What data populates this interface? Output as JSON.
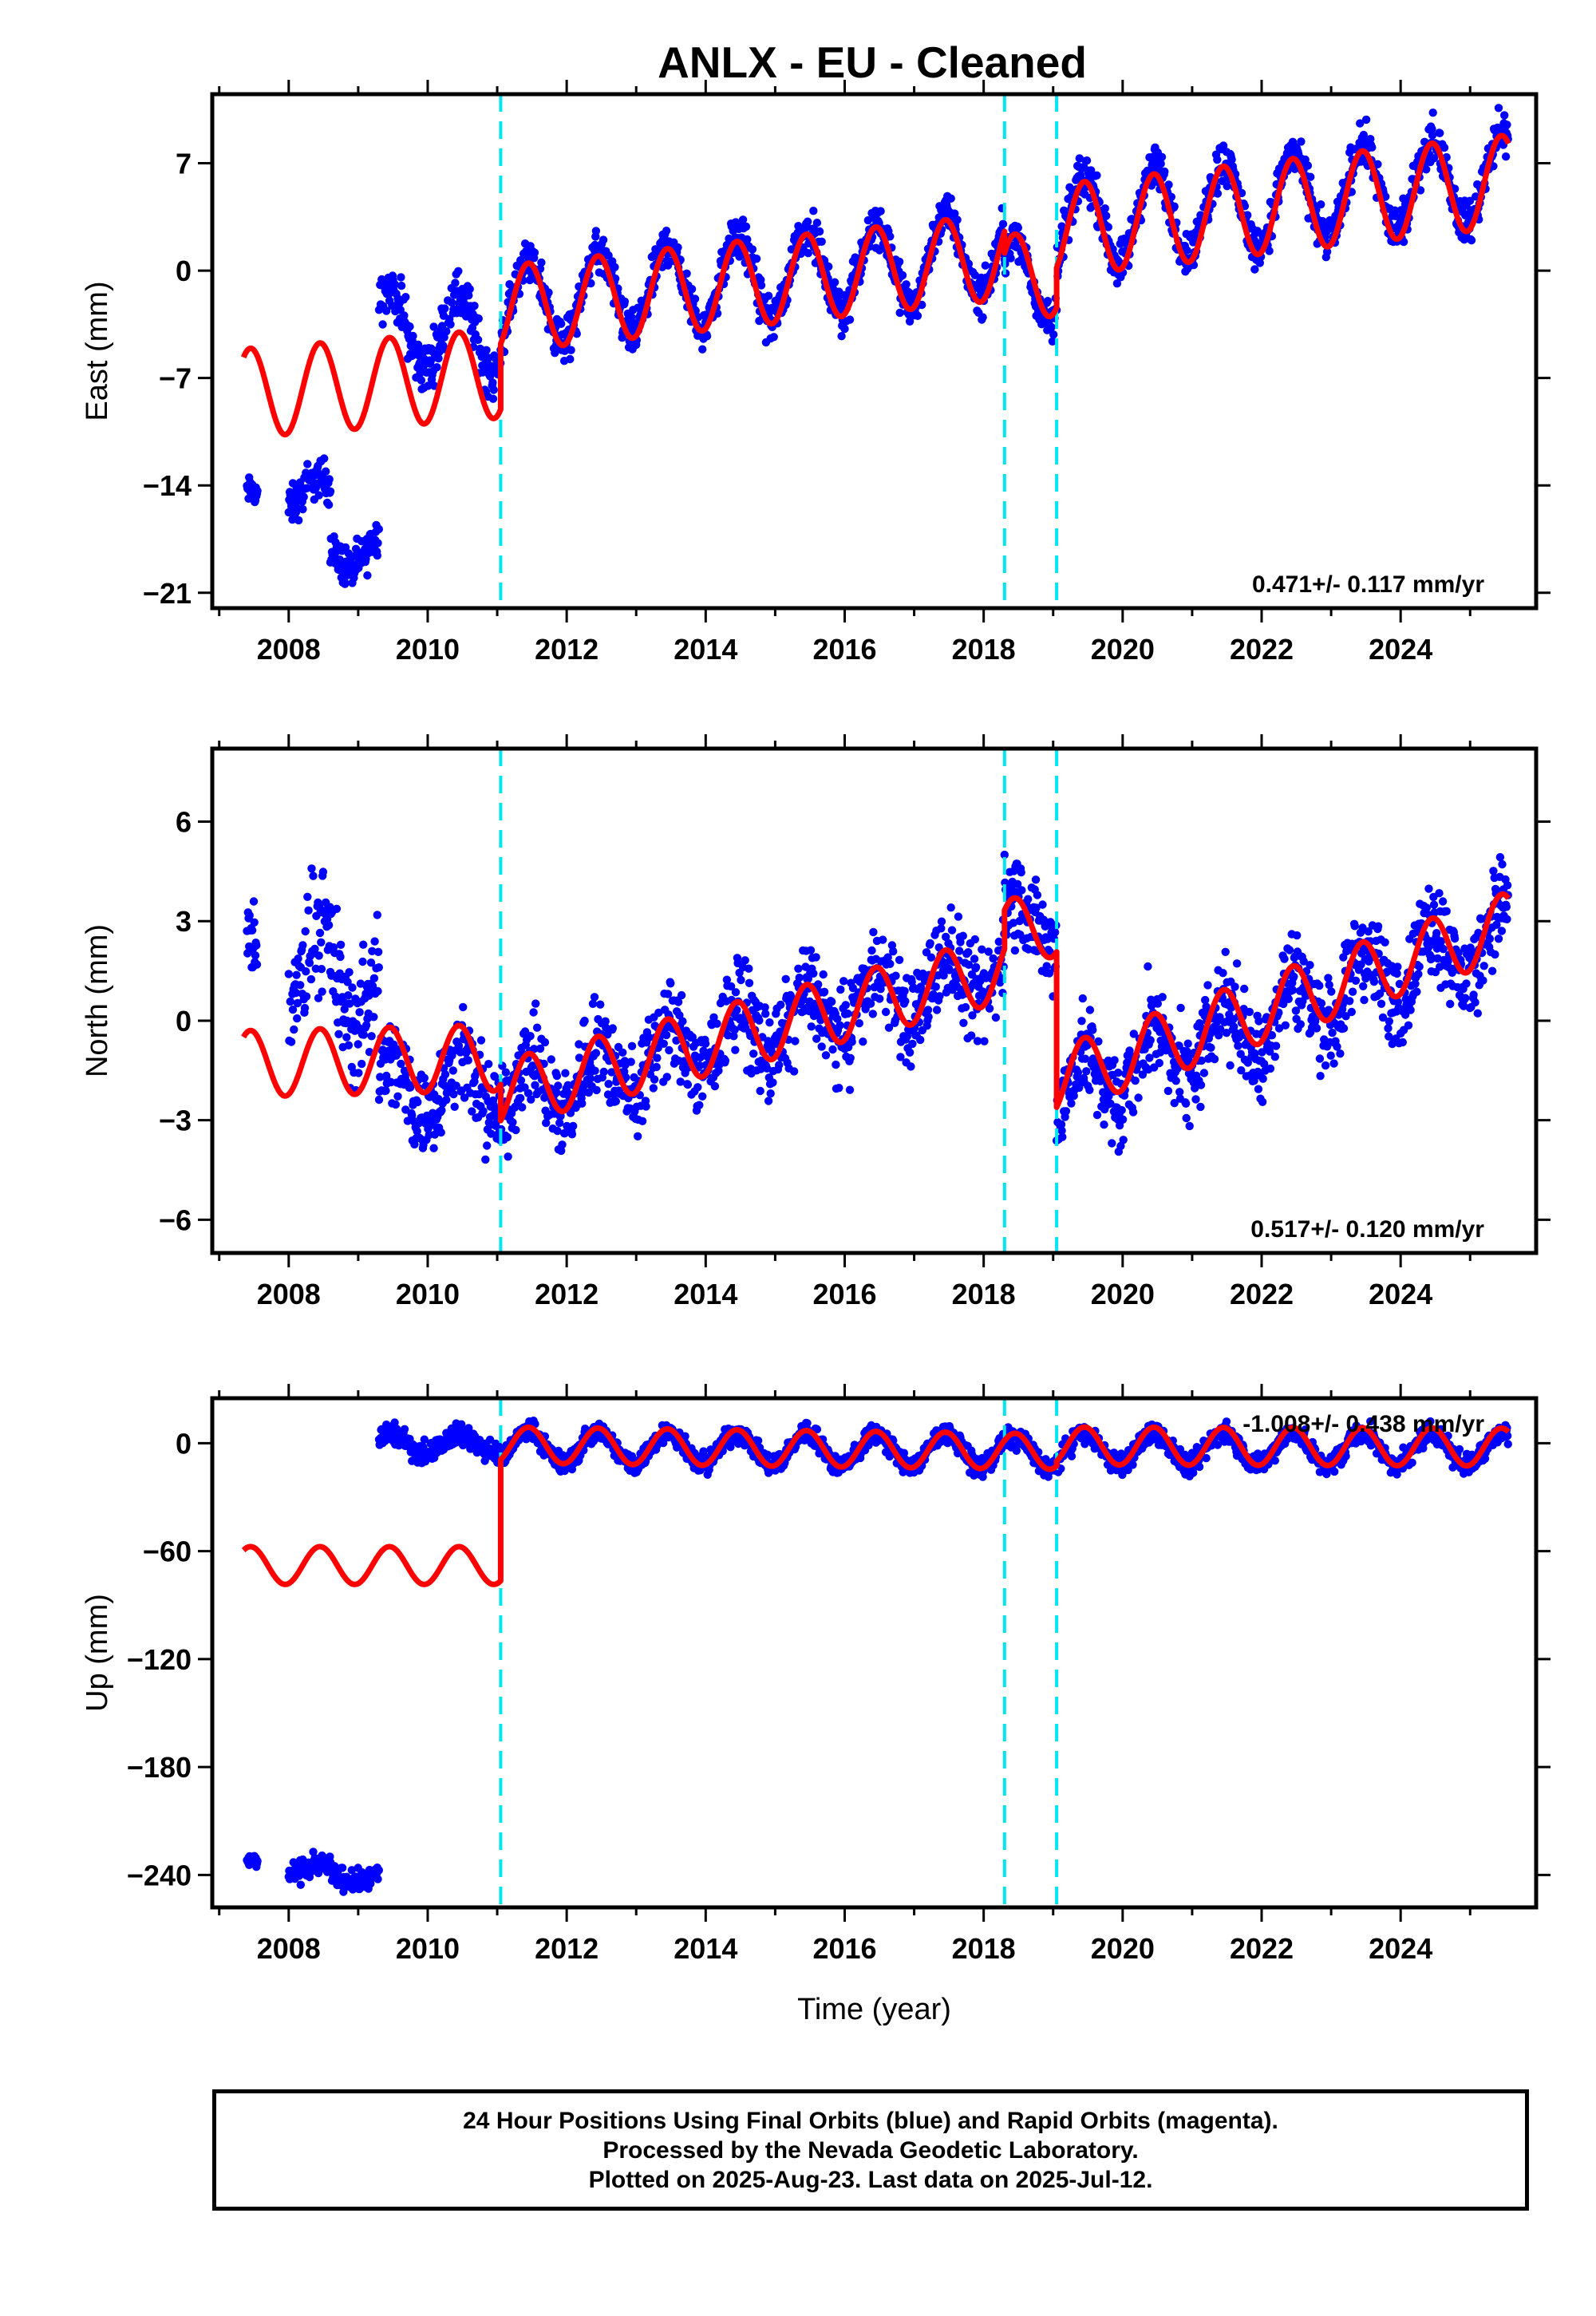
{
  "title": "ANLX  - EU - Cleaned",
  "colors": {
    "observations": "#0000ff",
    "model": "#ff0000",
    "events": "#00e5ee"
  },
  "xlabel": "Time (year)",
  "xticks": [
    "2008",
    "2010",
    "2012",
    "2014",
    "2016",
    "2018",
    "2020",
    "2022",
    "2024"
  ],
  "events": [
    2011.05,
    2018.3,
    2019.05
  ],
  "chart_data": [
    {
      "type": "scatter",
      "component": "east",
      "ylabel": "East (mm)",
      "rate": "0.471+/- 0.117 mm/yr",
      "xlim": [
        2006.9,
        2025.95
      ],
      "ylim": [
        -22,
        11.5
      ],
      "yticks": [
        7,
        0,
        -7,
        -14,
        -21
      ],
      "yticklabels": [
        "7",
        "0",
        "−7",
        "−14",
        "−21"
      ],
      "series": [
        {
          "name": "Final Orbits",
          "segments": [
            {
              "x0": 2007.4,
              "x1": 2007.55,
              "offset": -15.0,
              "amp": 0.6,
              "trend": 0.0,
              "spread": 0.8
            },
            {
              "x0": 2008.0,
              "x1": 2008.6,
              "offset": -14.5,
              "amp": 1.0,
              "trend": 0.0,
              "spread": 1.1
            },
            {
              "x0": 2008.6,
              "x1": 2009.3,
              "offset": -19.0,
              "amp": 1.0,
              "trend": 2.0,
              "spread": 1.1
            },
            {
              "x0": 2009.3,
              "x1": 2011.05,
              "offset": -3.5,
              "amp": 2.5,
              "trend": -0.5,
              "spread": 1.4
            },
            {
              "x0": 2011.05,
              "x1": 2018.3,
              "offset": -2.3,
              "amp": 2.8,
              "trend": 0.5,
              "spread": 1.2
            },
            {
              "x0": 2018.3,
              "x1": 2019.05,
              "offset": -0.8,
              "amp": 2.8,
              "trend": 0.5,
              "spread": 1.2
            },
            {
              "x0": 2019.05,
              "x1": 2025.55,
              "offset": 3.0,
              "amp": 2.9,
              "trend": 0.5,
              "spread": 1.2
            }
          ]
        }
      ],
      "model": [
        {
          "x0": 2007.35,
          "x1": 2011.05,
          "offset": -8.0,
          "amp": 2.9,
          "trend": 0.35
        },
        {
          "x0": 2011.05,
          "x1": 2018.3,
          "offset": -2.5,
          "amp": 2.8,
          "trend": 0.47
        },
        {
          "x0": 2018.3,
          "x1": 2019.05,
          "offset": -0.5,
          "amp": 2.8,
          "trend": 0.47
        },
        {
          "x0": 2019.05,
          "x1": 2025.55,
          "offset": 2.6,
          "amp": 3.0,
          "trend": 0.5
        }
      ]
    },
    {
      "type": "scatter",
      "component": "north",
      "ylabel": "North (mm)",
      "rate": "0.517+/- 0.120 mm/yr",
      "xlim": [
        2006.9,
        2025.95
      ],
      "ylim": [
        -7,
        8.2
      ],
      "yticks": [
        6,
        3,
        0,
        -3,
        -6
      ],
      "yticklabels": [
        "6",
        "3",
        "0",
        "−3",
        "−6"
      ],
      "series": [
        {
          "name": "Final Orbits",
          "segments": [
            {
              "x0": 2007.4,
              "x1": 2007.55,
              "offset": 2.0,
              "amp": 0.5,
              "trend": 0.0,
              "spread": 1.2
            },
            {
              "x0": 2008.0,
              "x1": 2009.3,
              "offset": 1.5,
              "amp": 1.5,
              "trend": -0.3,
              "spread": 1.6
            },
            {
              "x0": 2009.3,
              "x1": 2011.05,
              "offset": -2.0,
              "amp": 0.8,
              "trend": 0.0,
              "spread": 1.2
            },
            {
              "x0": 2011.05,
              "x1": 2018.3,
              "offset": -2.3,
              "amp": 0.9,
              "trend": 0.55,
              "spread": 1.2
            },
            {
              "x0": 2018.3,
              "x1": 2019.05,
              "offset": 3.0,
              "amp": 0.8,
              "trend": 0.0,
              "spread": 1.2
            },
            {
              "x0": 2019.05,
              "x1": 2025.55,
              "offset": -2.2,
              "amp": 1.0,
              "trend": 0.75,
              "spread": 1.2
            }
          ]
        }
      ],
      "model": [
        {
          "x0": 2007.35,
          "x1": 2011.05,
          "offset": -1.3,
          "amp": 1.0,
          "trend": 0.05
        },
        {
          "x0": 2011.05,
          "x1": 2018.3,
          "offset": -2.2,
          "amp": 1.0,
          "trend": 0.52
        },
        {
          "x0": 2018.3,
          "x1": 2019.05,
          "offset": 2.8,
          "amp": 0.9,
          "trend": 0.0
        },
        {
          "x0": 2019.05,
          "x1": 2025.55,
          "offset": -1.8,
          "amp": 1.0,
          "trend": 0.72
        }
      ]
    },
    {
      "type": "scatter",
      "component": "up",
      "ylabel": "Up (mm)",
      "rate": "-1.008+/- 0.438 mm/yr",
      "xlim": [
        2006.9,
        2025.95
      ],
      "ylim": [
        -258,
        25
      ],
      "yticks": [
        0,
        -60,
        -120,
        -180,
        -240
      ],
      "yticklabels": [
        "0",
        "−60",
        "−120",
        "−180",
        "−240"
      ],
      "series": [
        {
          "name": "Final Orbits",
          "segments": [
            {
              "x0": 2007.4,
              "x1": 2007.55,
              "offset": -234.0,
              "amp": 2.0,
              "trend": 0.0,
              "spread": 4.0
            },
            {
              "x0": 2008.0,
              "x1": 2008.6,
              "offset": -237.0,
              "amp": 3.0,
              "trend": 0.0,
              "spread": 5.0
            },
            {
              "x0": 2008.6,
              "x1": 2009.3,
              "offset": -241.0,
              "amp": 3.0,
              "trend": 0.0,
              "spread": 5.0
            },
            {
              "x0": 2009.3,
              "x1": 2011.05,
              "offset": 0.0,
              "amp": 5.0,
              "trend": 0.0,
              "spread": 5.0
            },
            {
              "x0": 2011.05,
              "x1": 2018.3,
              "offset": -2.0,
              "amp": 9.0,
              "trend": -0.3,
              "spread": 5.0
            },
            {
              "x0": 2018.3,
              "x1": 2019.05,
              "offset": -5.0,
              "amp": 9.0,
              "trend": 0.0,
              "spread": 5.0
            },
            {
              "x0": 2019.05,
              "x1": 2025.55,
              "offset": -3.0,
              "amp": 9.0,
              "trend": 0.0,
              "spread": 5.0
            }
          ]
        }
      ],
      "model": [
        {
          "x0": 2007.35,
          "x1": 2011.05,
          "offset": -68.0,
          "amp": 10.5,
          "trend": 0.0
        },
        {
          "x0": 2011.05,
          "x1": 2018.3,
          "offset": -1.0,
          "amp": 10.0,
          "trend": -0.45
        },
        {
          "x0": 2018.3,
          "x1": 2019.05,
          "offset": -4.5,
          "amp": 10.0,
          "trend": 0.0
        },
        {
          "x0": 2019.05,
          "x1": 2025.55,
          "offset": -1.5,
          "amp": 10.5,
          "trend": -0.1
        }
      ]
    }
  ],
  "footer": {
    "line1": "24 Hour Positions Using Final Orbits (blue) and Rapid Orbits (magenta).",
    "line2": "Processed by the Nevada Geodetic Laboratory.",
    "line3": "Plotted on 2025-Aug-23. Last data on 2025-Jul-12."
  }
}
